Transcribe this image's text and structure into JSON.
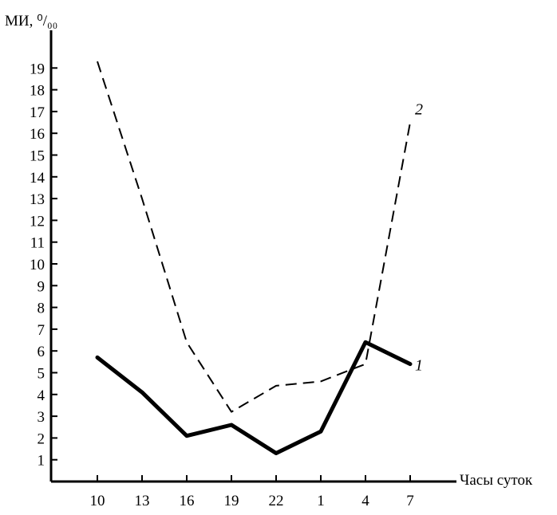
{
  "chart_data": {
    "type": "line",
    "ylabel": "МИ, ⁰/₀₀",
    "xlabel": "Часы суток",
    "categories": [
      "10",
      "13",
      "16",
      "19",
      "22",
      "1",
      "4",
      "7"
    ],
    "yticks": [
      "1",
      "2",
      "3",
      "4",
      "5",
      "6",
      "7",
      "8",
      "9",
      "10",
      "11",
      "12",
      "13",
      "14",
      "15",
      "16",
      "17",
      "18",
      "19"
    ],
    "ylim": [
      0,
      20
    ],
    "grid": false,
    "series": [
      {
        "name": "1",
        "style": "solid-thick",
        "color": "#000000",
        "values": [
          5.7,
          4.1,
          2.1,
          2.6,
          1.3,
          2.3,
          6.4,
          5.4
        ]
      },
      {
        "name": "2",
        "style": "dashed",
        "color": "#000000",
        "values": [
          19.3,
          13.0,
          6.4,
          3.2,
          4.4,
          4.6,
          5.4,
          16.5
        ]
      }
    ]
  }
}
